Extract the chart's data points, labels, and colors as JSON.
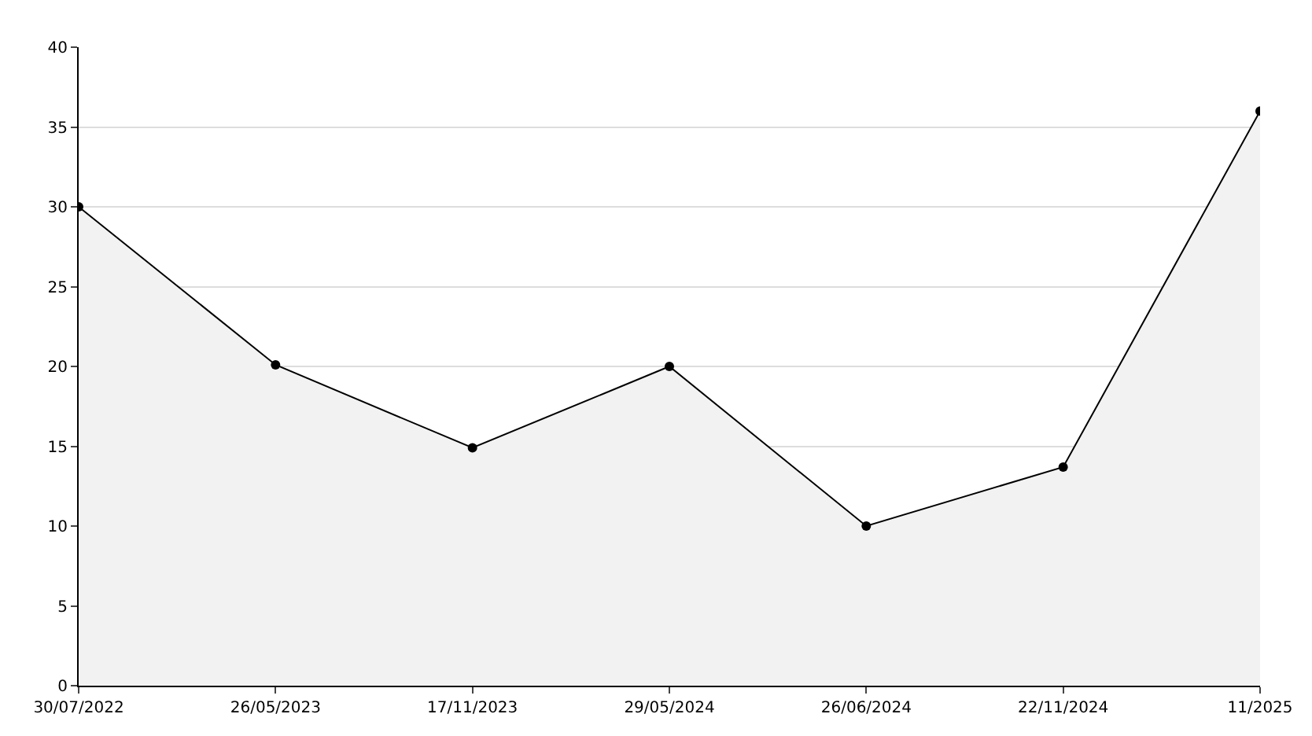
{
  "chart_data": {
    "type": "area",
    "categories": [
      "30/07/2022",
      "26/05/2023",
      "17/11/2023",
      "29/05/2024",
      "26/06/2024",
      "22/11/2024",
      "11/2025"
    ],
    "series": [
      {
        "color": "#000000",
        "values": [
          30,
          20.1,
          14.9,
          20,
          10,
          13.7,
          36
        ]
      }
    ],
    "ylim": [
      0,
      40
    ],
    "yticks": [
      0,
      5,
      10,
      15,
      20,
      25,
      30,
      35,
      40
    ],
    "grid": "y",
    "marker": "circle",
    "line_style": "solid",
    "legend": false
  }
}
